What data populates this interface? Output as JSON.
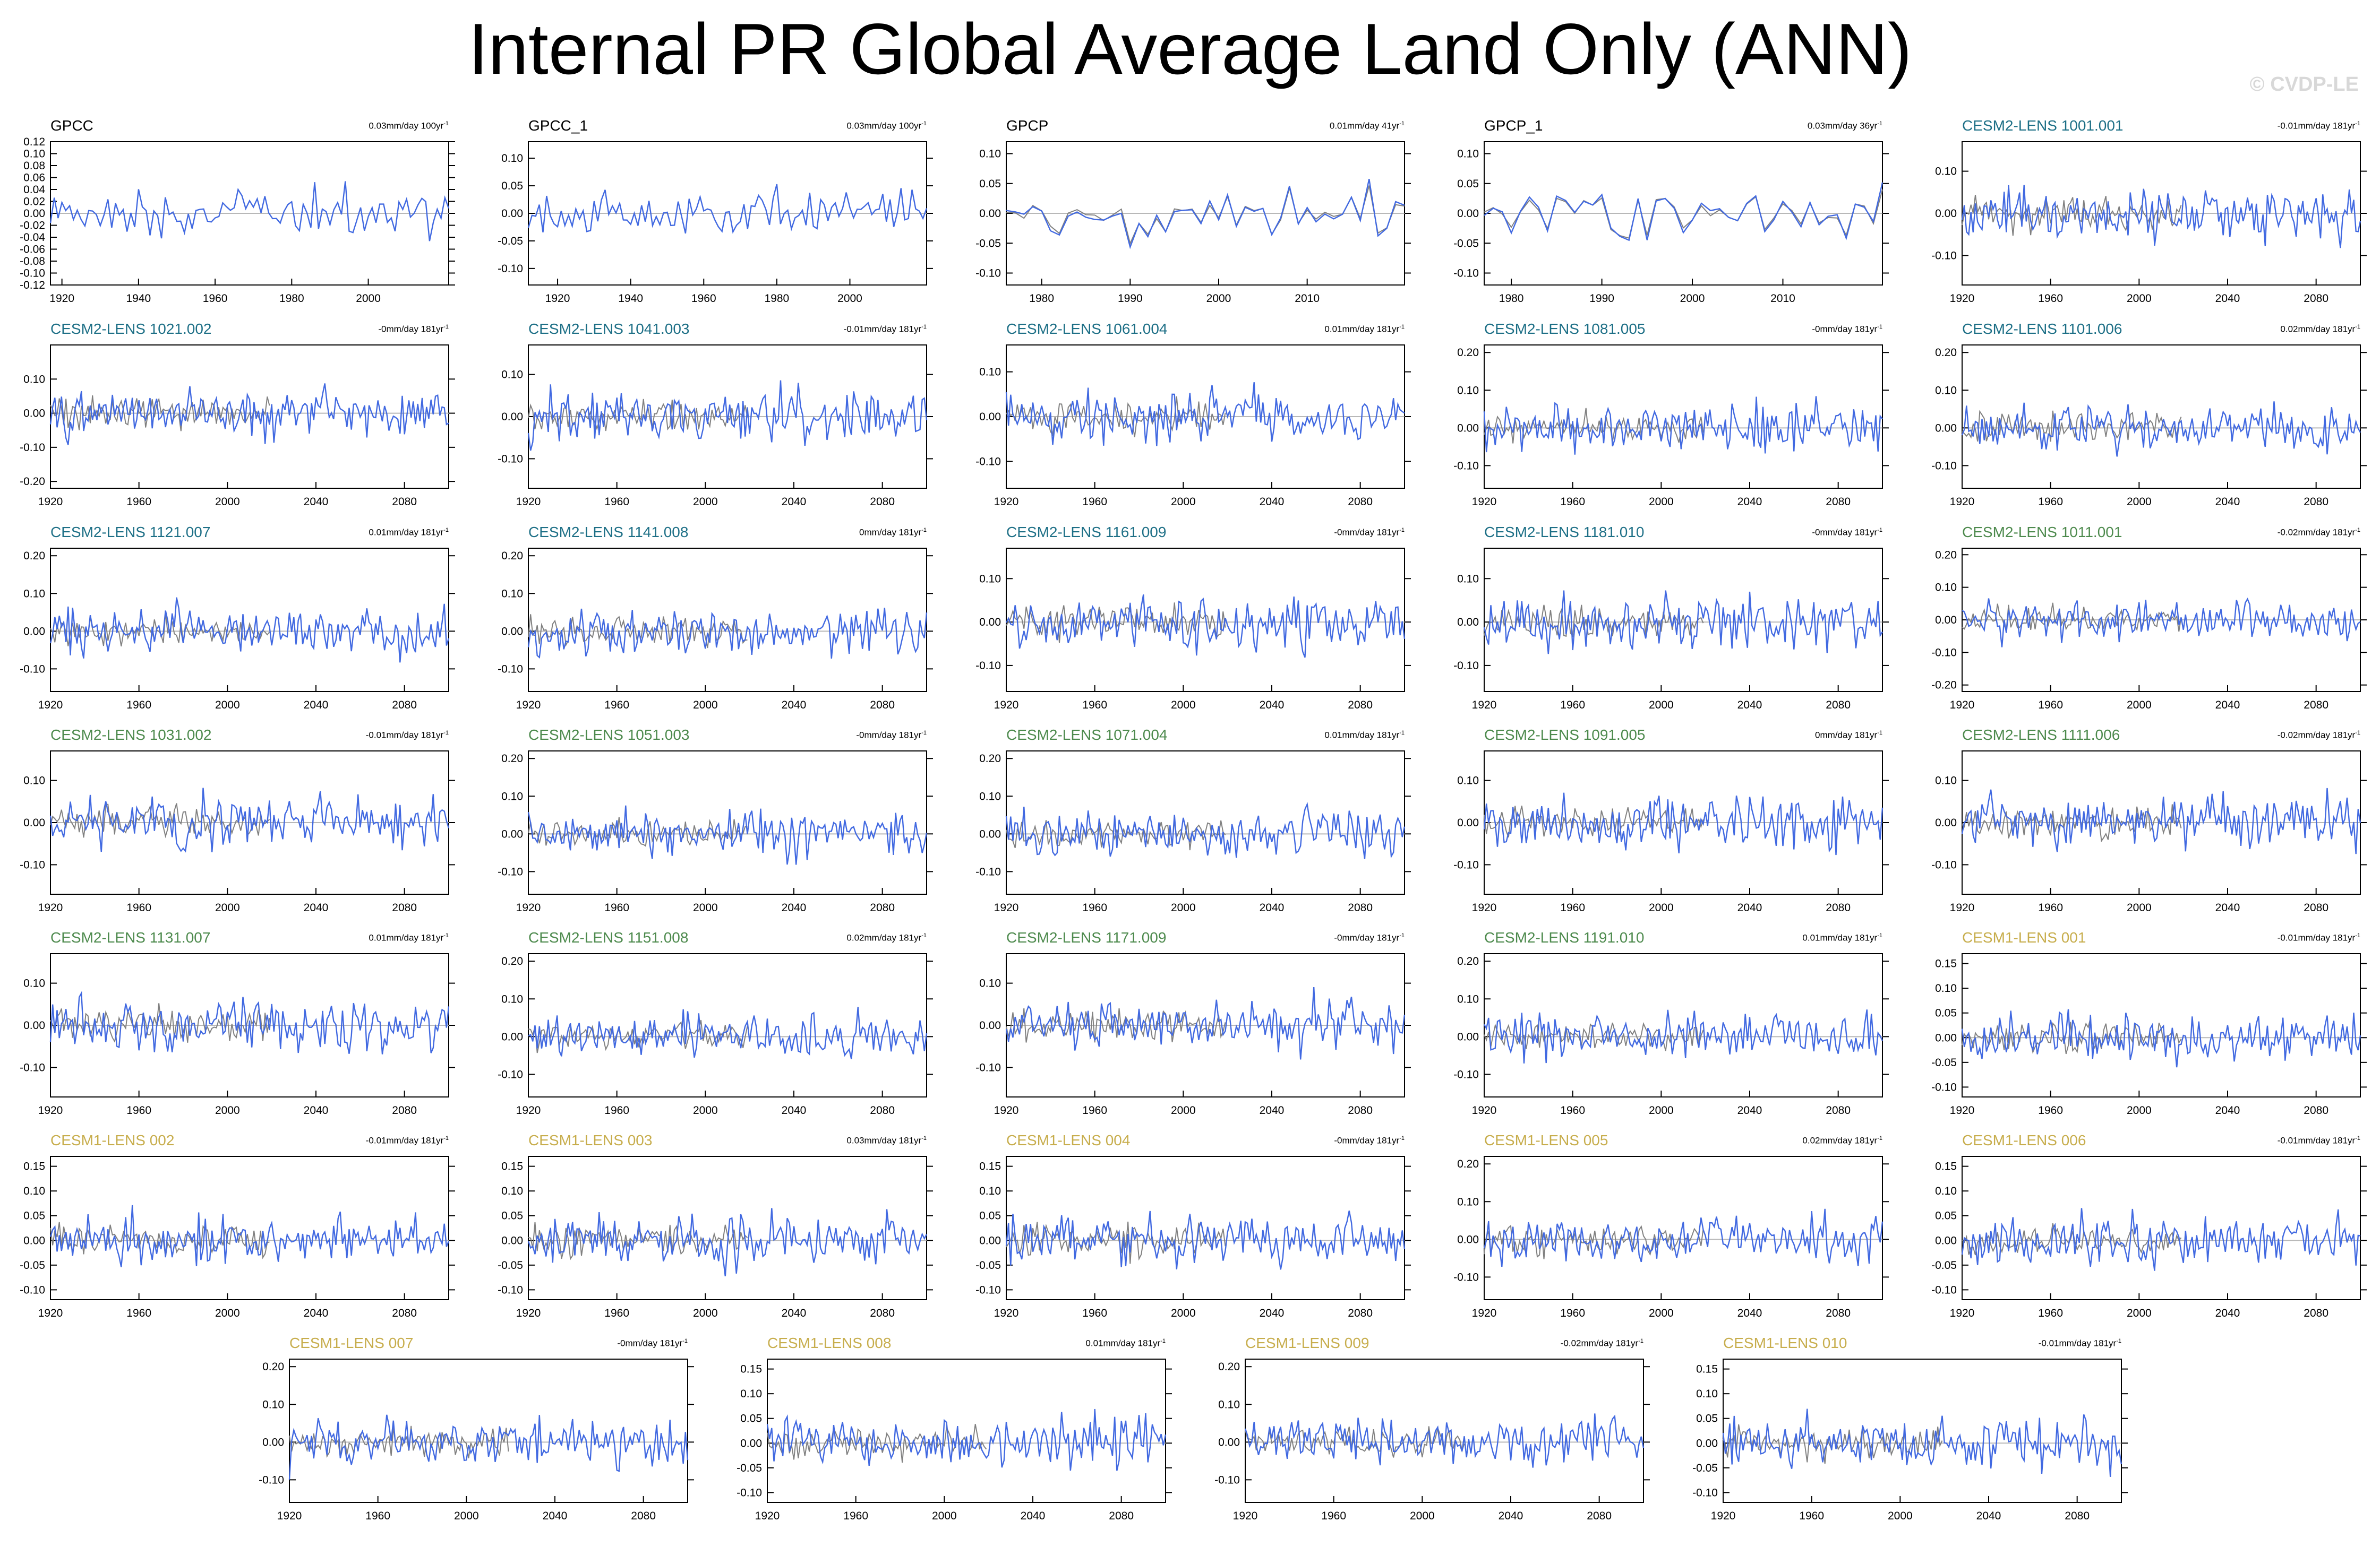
{
  "title": "Internal PR Global Average Land Only (ANN)",
  "watermark": "© CVDP-LE",
  "colors": {
    "primary_series": "#4169e1",
    "secondary_series": "#808080",
    "zero_line": "#b8b8b8",
    "axis": "#000000",
    "title_obs": "#000000",
    "title_cesm2_teal": "#1d6f86",
    "title_cesm2_green": "#4d8a4d",
    "title_cesm1": "#c7ad4c"
  },
  "chart_data": [
    {
      "type": "line",
      "title": "GPCC",
      "trend": "0.03mm/day 100yr",
      "trend_unit_exp": "-1",
      "title_color": "obs",
      "x_range": [
        1917,
        2021
      ],
      "x_ticks": [
        1920,
        1940,
        1960,
        1980,
        2000
      ],
      "y_range": [
        -0.12,
        0.12
      ],
      "y_ticks": [
        "0.12",
        "0.10",
        "0.08",
        "0.06",
        "0.04",
        "0.02",
        "0.00",
        "-0.02",
        "-0.04",
        "-0.06",
        "-0.08",
        "-0.10",
        "-0.12"
      ],
      "amp": 0.04,
      "seed": 11,
      "grey_overlay": false,
      "x_labels_shown": true
    },
    {
      "type": "line",
      "title": "GPCC_1",
      "trend": "0.03mm/day 100yr",
      "trend_unit_exp": "-1",
      "title_color": "obs",
      "x_range": [
        1912,
        2021
      ],
      "x_ticks": [
        1920,
        1940,
        1960,
        1980,
        2000
      ],
      "y_range": [
        -0.13,
        0.13
      ],
      "y_ticks": [
        "0.10",
        "0.05",
        "0.00",
        "-0.05",
        "-0.10"
      ],
      "amp": 0.045,
      "seed": 12,
      "grey_overlay": false,
      "x_labels_shown": true
    },
    {
      "type": "line",
      "title": "GPCP",
      "trend": "0.01mm/day 41yr",
      "trend_unit_exp": "-1",
      "title_color": "obs",
      "x_range": [
        1976,
        2021
      ],
      "x_ticks": [
        1980,
        1990,
        2000,
        2010
      ],
      "y_range": [
        -0.12,
        0.12
      ],
      "y_ticks": [
        "0.10",
        "0.05",
        "0.00",
        "-0.05",
        "-0.10"
      ],
      "amp": 0.045,
      "seed": 13,
      "grey_overlay": true,
      "grey_close": true,
      "x_labels_shown": true
    },
    {
      "type": "line",
      "title": "GPCP_1",
      "trend": "0.03mm/day 36yr",
      "trend_unit_exp": "-1",
      "title_color": "obs",
      "x_range": [
        1977,
        2021
      ],
      "x_ticks": [
        1980,
        1990,
        2000,
        2010
      ],
      "y_range": [
        -0.12,
        0.12
      ],
      "y_ticks": [
        "0.10",
        "0.05",
        "0.00",
        "-0.05",
        "-0.10"
      ],
      "amp": 0.045,
      "seed": 14,
      "grey_overlay": true,
      "grey_close": true,
      "x_labels_shown": true
    },
    {
      "type": "line",
      "title": "CESM2-LENS 1001.001",
      "trend": "-0.01mm/day 181yr",
      "trend_unit_exp": "-1",
      "title_color": "teal",
      "x_range": [
        1920,
        2100
      ],
      "x_ticks": [
        1920,
        1960,
        2000,
        2040,
        2080
      ],
      "y_range": [
        -0.17,
        0.17
      ],
      "y_ticks": [
        "0.10",
        "0.00",
        "-0.10"
      ],
      "amp": 0.06,
      "seed": 15,
      "grey_overlay": true,
      "x_labels_shown": true
    },
    {
      "type": "line",
      "title": "CESM2-LENS 1021.002",
      "trend": "-0mm/day 181yr",
      "trend_unit_exp": "-1",
      "title_color": "teal",
      "x_range": [
        1920,
        2100
      ],
      "x_ticks": [
        1920,
        1960,
        2000,
        2040,
        2080
      ],
      "y_range": [
        -0.22,
        0.2
      ],
      "y_ticks": [
        "0.10",
        "0.00",
        "-0.10",
        "-0.20"
      ],
      "amp": 0.07,
      "seed": 21,
      "grey_overlay": true,
      "x_labels_shown": true
    },
    {
      "type": "line",
      "title": "CESM2-LENS 1041.003",
      "trend": "-0.01mm/day 181yr",
      "trend_unit_exp": "-1",
      "title_color": "teal",
      "x_range": [
        1920,
        2100
      ],
      "x_ticks": [
        1920,
        1960,
        2000,
        2040,
        2080
      ],
      "y_range": [
        -0.17,
        0.17
      ],
      "y_ticks": [
        "0.10",
        "0.00",
        "-0.10"
      ],
      "amp": 0.06,
      "seed": 22,
      "grey_overlay": true,
      "x_labels_shown": true
    },
    {
      "type": "line",
      "title": "CESM2-LENS 1061.004",
      "trend": "0.01mm/day 181yr",
      "trend_unit_exp": "-1",
      "title_color": "teal",
      "x_range": [
        1920,
        2100
      ],
      "x_ticks": [
        1920,
        1960,
        2000,
        2040,
        2080
      ],
      "y_range": [
        -0.16,
        0.16
      ],
      "y_ticks": [
        "0.10",
        "0.00",
        "-0.10"
      ],
      "amp": 0.06,
      "seed": 23,
      "grey_overlay": true,
      "x_labels_shown": true
    },
    {
      "type": "line",
      "title": "CESM2-LENS 1081.005",
      "trend": "-0mm/day 181yr",
      "trend_unit_exp": "-1",
      "title_color": "teal",
      "x_range": [
        1920,
        2100
      ],
      "x_ticks": [
        1920,
        1960,
        2000,
        2040,
        2080
      ],
      "y_range": [
        -0.16,
        0.22
      ],
      "y_ticks": [
        "0.20",
        "0.10",
        "0.00",
        "-0.10"
      ],
      "amp": 0.06,
      "seed": 24,
      "grey_overlay": true,
      "x_labels_shown": true
    },
    {
      "type": "line",
      "title": "CESM2-LENS 1101.006",
      "trend": "0.02mm/day 181yr",
      "trend_unit_exp": "-1",
      "title_color": "teal",
      "x_range": [
        1920,
        2100
      ],
      "x_ticks": [
        1920,
        1960,
        2000,
        2040,
        2080
      ],
      "y_range": [
        -0.16,
        0.22
      ],
      "y_ticks": [
        "0.20",
        "0.10",
        "0.00",
        "-0.10"
      ],
      "amp": 0.06,
      "seed": 25,
      "grey_overlay": true,
      "x_labels_shown": true
    },
    {
      "type": "line",
      "title": "CESM2-LENS 1121.007",
      "trend": "0.01mm/day 181yr",
      "trend_unit_exp": "-1",
      "title_color": "teal",
      "x_range": [
        1920,
        2100
      ],
      "x_ticks": [
        1920,
        1960,
        2000,
        2040,
        2080
      ],
      "y_range": [
        -0.16,
        0.22
      ],
      "y_ticks": [
        "0.20",
        "0.10",
        "0.00",
        "-0.10"
      ],
      "amp": 0.06,
      "seed": 31,
      "grey_overlay": true,
      "x_labels_shown": true
    },
    {
      "type": "line",
      "title": "CESM2-LENS 1141.008",
      "trend": "0mm/day 181yr",
      "trend_unit_exp": "-1",
      "title_color": "teal",
      "x_range": [
        1920,
        2100
      ],
      "x_ticks": [
        1920,
        1960,
        2000,
        2040,
        2080
      ],
      "y_range": [
        -0.16,
        0.22
      ],
      "y_ticks": [
        "0.20",
        "0.10",
        "0.00",
        "-0.10"
      ],
      "amp": 0.06,
      "seed": 32,
      "grey_overlay": true,
      "x_labels_shown": true
    },
    {
      "type": "line",
      "title": "CESM2-LENS 1161.009",
      "trend": "-0mm/day 181yr",
      "trend_unit_exp": "-1",
      "title_color": "teal",
      "x_range": [
        1920,
        2100
      ],
      "x_ticks": [
        1920,
        1960,
        2000,
        2040,
        2080
      ],
      "y_range": [
        -0.16,
        0.17
      ],
      "y_ticks": [
        "0.10",
        "0.00",
        "-0.10"
      ],
      "amp": 0.06,
      "seed": 33,
      "grey_overlay": true,
      "x_labels_shown": true
    },
    {
      "type": "line",
      "title": "CESM2-LENS 1181.010",
      "trend": "-0mm/day 181yr",
      "trend_unit_exp": "-1",
      "title_color": "teal",
      "x_range": [
        1920,
        2100
      ],
      "x_ticks": [
        1920,
        1960,
        2000,
        2040,
        2080
      ],
      "y_range": [
        -0.16,
        0.17
      ],
      "y_ticks": [
        "0.10",
        "0.00",
        "-0.10"
      ],
      "amp": 0.06,
      "seed": 34,
      "grey_overlay": true,
      "x_labels_shown": true
    },
    {
      "type": "line",
      "title": "CESM2-LENS 1011.001",
      "trend": "-0.02mm/day 181yr",
      "trend_unit_exp": "-1",
      "title_color": "green",
      "x_range": [
        1920,
        2100
      ],
      "x_ticks": [
        1920,
        1960,
        2000,
        2040,
        2080
      ],
      "y_range": [
        -0.22,
        0.22
      ],
      "y_ticks": [
        "0.20",
        "0.10",
        "0.00",
        "-0.10",
        "-0.20"
      ],
      "amp": 0.06,
      "seed": 35,
      "grey_overlay": true,
      "x_labels_shown": true
    },
    {
      "type": "line",
      "title": "CESM2-LENS 1031.002",
      "trend": "-0.01mm/day 181yr",
      "trend_unit_exp": "-1",
      "title_color": "green",
      "x_range": [
        1920,
        2100
      ],
      "x_ticks": [
        1920,
        1960,
        2000,
        2040,
        2080
      ],
      "y_range": [
        -0.17,
        0.17
      ],
      "y_ticks": [
        "0.10",
        "0.00",
        "-0.10"
      ],
      "amp": 0.06,
      "seed": 41,
      "grey_overlay": true,
      "x_labels_shown": true
    },
    {
      "type": "line",
      "title": "CESM2-LENS 1051.003",
      "trend": "-0mm/day 181yr",
      "trend_unit_exp": "-1",
      "title_color": "green",
      "x_range": [
        1920,
        2100
      ],
      "x_ticks": [
        1920,
        1960,
        2000,
        2040,
        2080
      ],
      "y_range": [
        -0.16,
        0.22
      ],
      "y_ticks": [
        "0.20",
        "0.10",
        "0.00",
        "-0.10"
      ],
      "amp": 0.06,
      "seed": 42,
      "grey_overlay": true,
      "x_labels_shown": true
    },
    {
      "type": "line",
      "title": "CESM2-LENS 1071.004",
      "trend": "0.01mm/day 181yr",
      "trend_unit_exp": "-1",
      "title_color": "green",
      "x_range": [
        1920,
        2100
      ],
      "x_ticks": [
        1920,
        1960,
        2000,
        2040,
        2080
      ],
      "y_range": [
        -0.16,
        0.22
      ],
      "y_ticks": [
        "0.20",
        "0.10",
        "0.00",
        "-0.10"
      ],
      "amp": 0.06,
      "seed": 43,
      "grey_overlay": true,
      "x_labels_shown": true
    },
    {
      "type": "line",
      "title": "CESM2-LENS 1091.005",
      "trend": "0mm/day 181yr",
      "trend_unit_exp": "-1",
      "title_color": "green",
      "x_range": [
        1920,
        2100
      ],
      "x_ticks": [
        1920,
        1960,
        2000,
        2040,
        2080
      ],
      "y_range": [
        -0.17,
        0.17
      ],
      "y_ticks": [
        "0.10",
        "0.00",
        "-0.10"
      ],
      "amp": 0.06,
      "seed": 44,
      "grey_overlay": true,
      "x_labels_shown": true
    },
    {
      "type": "line",
      "title": "CESM2-LENS 1111.006",
      "trend": "-0.02mm/day 181yr",
      "trend_unit_exp": "-1",
      "title_color": "green",
      "x_range": [
        1920,
        2100
      ],
      "x_ticks": [
        1920,
        1960,
        2000,
        2040,
        2080
      ],
      "y_range": [
        -0.17,
        0.17
      ],
      "y_ticks": [
        "0.10",
        "0.00",
        "-0.10"
      ],
      "amp": 0.06,
      "seed": 45,
      "grey_overlay": true,
      "x_labels_shown": true
    },
    {
      "type": "line",
      "title": "CESM2-LENS 1131.007",
      "trend": "0.01mm/day 181yr",
      "trend_unit_exp": "-1",
      "title_color": "green",
      "x_range": [
        1920,
        2100
      ],
      "x_ticks": [
        1920,
        1960,
        2000,
        2040,
        2080
      ],
      "y_range": [
        -0.17,
        0.17
      ],
      "y_ticks": [
        "0.10",
        "0.00",
        "-0.10"
      ],
      "amp": 0.06,
      "seed": 51,
      "grey_overlay": true,
      "x_labels_shown": true
    },
    {
      "type": "line",
      "title": "CESM2-LENS 1151.008",
      "trend": "0.02mm/day 181yr",
      "trend_unit_exp": "-1",
      "title_color": "green",
      "x_range": [
        1920,
        2100
      ],
      "x_ticks": [
        1920,
        1960,
        2000,
        2040,
        2080
      ],
      "y_range": [
        -0.16,
        0.22
      ],
      "y_ticks": [
        "0.20",
        "0.10",
        "0.00",
        "-0.10"
      ],
      "amp": 0.06,
      "seed": 52,
      "grey_overlay": true,
      "x_labels_shown": true
    },
    {
      "type": "line",
      "title": "CESM2-LENS 1171.009",
      "trend": "-0mm/day 181yr",
      "trend_unit_exp": "-1",
      "title_color": "green",
      "x_range": [
        1920,
        2100
      ],
      "x_ticks": [
        1920,
        1960,
        2000,
        2040,
        2080
      ],
      "y_range": [
        -0.17,
        0.17
      ],
      "y_ticks": [
        "0.10",
        "0.00",
        "-0.10"
      ],
      "amp": 0.06,
      "seed": 53,
      "grey_overlay": true,
      "x_labels_shown": true
    },
    {
      "type": "line",
      "title": "CESM2-LENS 1191.010",
      "trend": "0.01mm/day 181yr",
      "trend_unit_exp": "-1",
      "title_color": "green",
      "x_range": [
        1920,
        2100
      ],
      "x_ticks": [
        1920,
        1960,
        2000,
        2040,
        2080
      ],
      "y_range": [
        -0.16,
        0.22
      ],
      "y_ticks": [
        "0.20",
        "0.10",
        "0.00",
        "-0.10"
      ],
      "amp": 0.06,
      "seed": 54,
      "grey_overlay": true,
      "x_labels_shown": true
    },
    {
      "type": "line",
      "title": "CESM1-LENS 001",
      "trend": "-0.01mm/day 181yr",
      "trend_unit_exp": "-1",
      "title_color": "cesm1",
      "x_range": [
        1920,
        2100
      ],
      "x_ticks": [
        1920,
        1960,
        2000,
        2040,
        2080
      ],
      "y_range": [
        -0.12,
        0.17
      ],
      "y_ticks": [
        "0.15",
        "0.10",
        "0.05",
        "0.00",
        "-0.05",
        "-0.10"
      ],
      "amp": 0.05,
      "seed": 55,
      "grey_overlay": true,
      "x_labels_shown": true
    },
    {
      "type": "line",
      "title": "CESM1-LENS 002",
      "trend": "-0.01mm/day 181yr",
      "trend_unit_exp": "-1",
      "title_color": "cesm1",
      "x_range": [
        1920,
        2100
      ],
      "x_ticks": [
        1920,
        1960,
        2000,
        2040,
        2080
      ],
      "y_range": [
        -0.12,
        0.17
      ],
      "y_ticks": [
        "0.15",
        "0.10",
        "0.05",
        "0.00",
        "-0.05",
        "-0.10"
      ],
      "amp": 0.05,
      "seed": 61,
      "grey_overlay": true,
      "x_labels_shown": true
    },
    {
      "type": "line",
      "title": "CESM1-LENS 003",
      "trend": "0.03mm/day 181yr",
      "trend_unit_exp": "-1",
      "title_color": "cesm1",
      "x_range": [
        1920,
        2100
      ],
      "x_ticks": [
        1920,
        1960,
        2000,
        2040,
        2080
      ],
      "y_range": [
        -0.12,
        0.17
      ],
      "y_ticks": [
        "0.15",
        "0.10",
        "0.05",
        "0.00",
        "-0.05",
        "-0.10"
      ],
      "amp": 0.05,
      "seed": 62,
      "grey_overlay": true,
      "x_labels_shown": true
    },
    {
      "type": "line",
      "title": "CESM1-LENS 004",
      "trend": "-0mm/day 181yr",
      "trend_unit_exp": "-1",
      "title_color": "cesm1",
      "x_range": [
        1920,
        2100
      ],
      "x_ticks": [
        1920,
        1960,
        2000,
        2040,
        2080
      ],
      "y_range": [
        -0.12,
        0.17
      ],
      "y_ticks": [
        "0.15",
        "0.10",
        "0.05",
        "0.00",
        "-0.05",
        "-0.10"
      ],
      "amp": 0.05,
      "seed": 63,
      "grey_overlay": true,
      "x_labels_shown": true
    },
    {
      "type": "line",
      "title": "CESM1-LENS 005",
      "trend": "0.02mm/day 181yr",
      "trend_unit_exp": "-1",
      "title_color": "cesm1",
      "x_range": [
        1920,
        2100
      ],
      "x_ticks": [
        1920,
        1960,
        2000,
        2040,
        2080
      ],
      "y_range": [
        -0.16,
        0.22
      ],
      "y_ticks": [
        "0.20",
        "0.10",
        "0.00",
        "-0.10"
      ],
      "amp": 0.06,
      "seed": 64,
      "grey_overlay": true,
      "x_labels_shown": true
    },
    {
      "type": "line",
      "title": "CESM1-LENS 006",
      "trend": "-0.01mm/day 181yr",
      "trend_unit_exp": "-1",
      "title_color": "cesm1",
      "x_range": [
        1920,
        2100
      ],
      "x_ticks": [
        1920,
        1960,
        2000,
        2040,
        2080
      ],
      "y_range": [
        -0.12,
        0.17
      ],
      "y_ticks": [
        "0.15",
        "0.10",
        "0.05",
        "0.00",
        "-0.05",
        "-0.10"
      ],
      "amp": 0.05,
      "seed": 65,
      "grey_overlay": true,
      "x_labels_shown": true
    },
    {
      "type": "line",
      "title": "CESM1-LENS 007",
      "trend": "-0mm/day 181yr",
      "trend_unit_exp": "-1",
      "title_color": "cesm1",
      "x_range": [
        1920,
        2100
      ],
      "x_ticks": [
        1920,
        1960,
        2000,
        2040,
        2080
      ],
      "y_range": [
        -0.16,
        0.22
      ],
      "y_ticks": [
        "0.20",
        "0.10",
        "0.00",
        "-0.10"
      ],
      "amp": 0.06,
      "seed": 71,
      "grey_overlay": true,
      "x_labels_shown": true
    },
    {
      "type": "line",
      "title": "CESM1-LENS 008",
      "trend": "0.01mm/day 181yr",
      "trend_unit_exp": "-1",
      "title_color": "cesm1",
      "x_range": [
        1920,
        2100
      ],
      "x_ticks": [
        1920,
        1960,
        2000,
        2040,
        2080
      ],
      "y_range": [
        -0.12,
        0.17
      ],
      "y_ticks": [
        "0.15",
        "0.10",
        "0.05",
        "0.00",
        "-0.05",
        "-0.10"
      ],
      "amp": 0.05,
      "seed": 72,
      "grey_overlay": true,
      "x_labels_shown": true
    },
    {
      "type": "line",
      "title": "CESM1-LENS 009",
      "trend": "-0.02mm/day 181yr",
      "trend_unit_exp": "-1",
      "title_color": "cesm1",
      "x_range": [
        1920,
        2100
      ],
      "x_ticks": [
        1920,
        1960,
        2000,
        2040,
        2080
      ],
      "y_range": [
        -0.16,
        0.22
      ],
      "y_ticks": [
        "0.20",
        "0.10",
        "0.00",
        "-0.10"
      ],
      "amp": 0.06,
      "seed": 73,
      "grey_overlay": true,
      "x_labels_shown": true
    },
    {
      "type": "line",
      "title": "CESM1-LENS 010",
      "trend": "-0.01mm/day 181yr",
      "trend_unit_exp": "-1",
      "title_color": "cesm1",
      "x_range": [
        1920,
        2100
      ],
      "x_ticks": [
        1920,
        1960,
        2000,
        2040,
        2080
      ],
      "y_range": [
        -0.12,
        0.17
      ],
      "y_ticks": [
        "0.15",
        "0.10",
        "0.05",
        "0.00",
        "-0.05",
        "-0.10"
      ],
      "amp": 0.05,
      "seed": 74,
      "grey_overlay": true,
      "x_labels_shown": true
    }
  ]
}
